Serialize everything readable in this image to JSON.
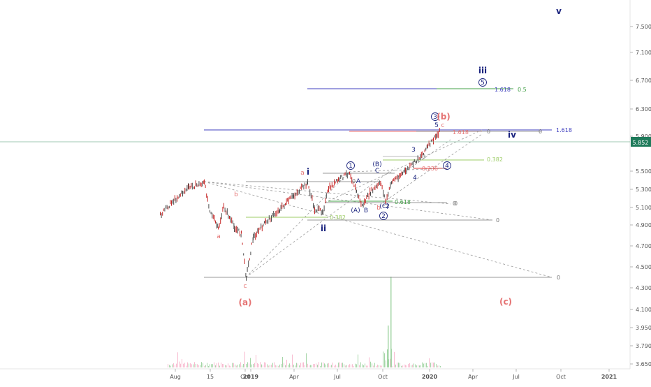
{
  "chart_data": {
    "type": "line",
    "title": "",
    "xlabel": "",
    "ylabel": "",
    "y_scale": "log",
    "ylim": [
      3.6,
      8.2
    ],
    "grid": false,
    "y_ticks": [
      "7.500",
      "7.100",
      "6.700",
      "6.300",
      "5.900",
      "5.500",
      "5.300",
      "5.100",
      "4.900",
      "4.700",
      "4.500",
      "4.300",
      "4.100",
      "3.950",
      "3.790",
      "3.650"
    ],
    "x_ticks": [
      "Aug",
      "15",
      "Oct",
      "2019",
      "Apr",
      "Jul",
      "Oct",
      "2020",
      "Apr",
      "Jul",
      "Oct",
      "2021"
    ],
    "price_points": [
      [
        "Jul",
        5.0
      ],
      [
        "Jul",
        5.15
      ],
      [
        "Aug",
        5.25
      ],
      [
        "Aug",
        5.35
      ],
      [
        "15",
        5.4
      ],
      [
        "15",
        5.15
      ],
      [
        "Oct",
        4.95
      ],
      [
        "Oct",
        5.1
      ],
      [
        "2019",
        4.38
      ],
      [
        "2019",
        4.75
      ],
      [
        "2019",
        5.0
      ],
      [
        "Apr",
        5.4
      ],
      [
        "Apr",
        5.15
      ],
      [
        "Apr",
        5.0
      ],
      [
        "Jul",
        5.5
      ],
      [
        "Jul",
        5.25
      ],
      [
        "Jul",
        5.15
      ],
      [
        "Oct",
        5.35
      ],
      [
        "Oct",
        5.2
      ],
      [
        "Oct",
        5.6
      ],
      [
        "2020",
        6.05
      ]
    ],
    "current_price": "5.852",
    "colors": {
      "primary_wave": "#1a237e",
      "corrective_wave": "#e57373",
      "fib_blue": "#3f3fbf",
      "fib_red": "#e53935",
      "fib_green": "#43a047",
      "fib_yellowgreen": "#9ccc65",
      "level_grey": "#787878",
      "price_line": "#1e7a5a",
      "volume": "#f8bbd0"
    },
    "wave_labels": [
      {
        "text": "v",
        "color": "navy"
      },
      {
        "text": "iii",
        "color": "navy"
      },
      {
        "text": "5",
        "color": "navy",
        "circled": true
      },
      {
        "text": "3",
        "color": "navy",
        "circled": true
      },
      {
        "text": "(b)",
        "color": "red"
      },
      {
        "text": "5",
        "color": "navy"
      },
      {
        "text": "c",
        "color": "red"
      },
      {
        "text": "iv",
        "color": "navy"
      },
      {
        "text": "4",
        "color": "navy",
        "circled": true
      },
      {
        "text": "3",
        "color": "navy"
      },
      {
        "text": "4",
        "color": "navy"
      },
      {
        "text": "(B)",
        "color": "navy"
      },
      {
        "text": "C",
        "color": "navy"
      },
      {
        "text": "1",
        "color": "navy",
        "circled": true
      },
      {
        "text": "A",
        "color": "navy"
      },
      {
        "text": "(A)",
        "color": "navy"
      },
      {
        "text": "B",
        "color": "navy"
      },
      {
        "text": "b",
        "color": "red"
      },
      {
        "text": "(C)",
        "color": "navy"
      },
      {
        "text": "2",
        "color": "navy"
      },
      {
        "text": "2",
        "color": "navy",
        "circled": true
      },
      {
        "text": "a",
        "color": "red"
      },
      {
        "text": "i",
        "color": "navy"
      },
      {
        "text": "ii",
        "color": "navy"
      },
      {
        "text": "b",
        "color": "red"
      },
      {
        "text": "a",
        "color": "red"
      },
      {
        "text": "c",
        "color": "red"
      },
      {
        "text": "(a)",
        "color": "red"
      },
      {
        "text": "(c)",
        "color": "red"
      }
    ],
    "fib_labels": [
      {
        "text": "1.618",
        "color": "blue"
      },
      {
        "text": "0.5",
        "color": "green"
      },
      {
        "text": "1.618",
        "color": "red"
      },
      {
        "text": "0",
        "color": "grey"
      },
      {
        "text": "0",
        "color": "grey"
      },
      {
        "text": "1.618",
        "color": "blue"
      },
      {
        "text": "0.382",
        "color": "yellowgreen"
      },
      {
        "text": "0",
        "color": "grey"
      },
      {
        "text": "0.236",
        "color": "red"
      },
      {
        "text": "0",
        "color": "grey"
      },
      {
        "text": "0.618",
        "color": "green"
      },
      {
        "text": "0",
        "color": "grey"
      },
      {
        "text": "0",
        "color": "grey"
      },
      {
        "text": "0.382",
        "color": "yellowgreen"
      },
      {
        "text": "0",
        "color": "grey"
      },
      {
        "text": "0",
        "color": "grey"
      }
    ]
  }
}
